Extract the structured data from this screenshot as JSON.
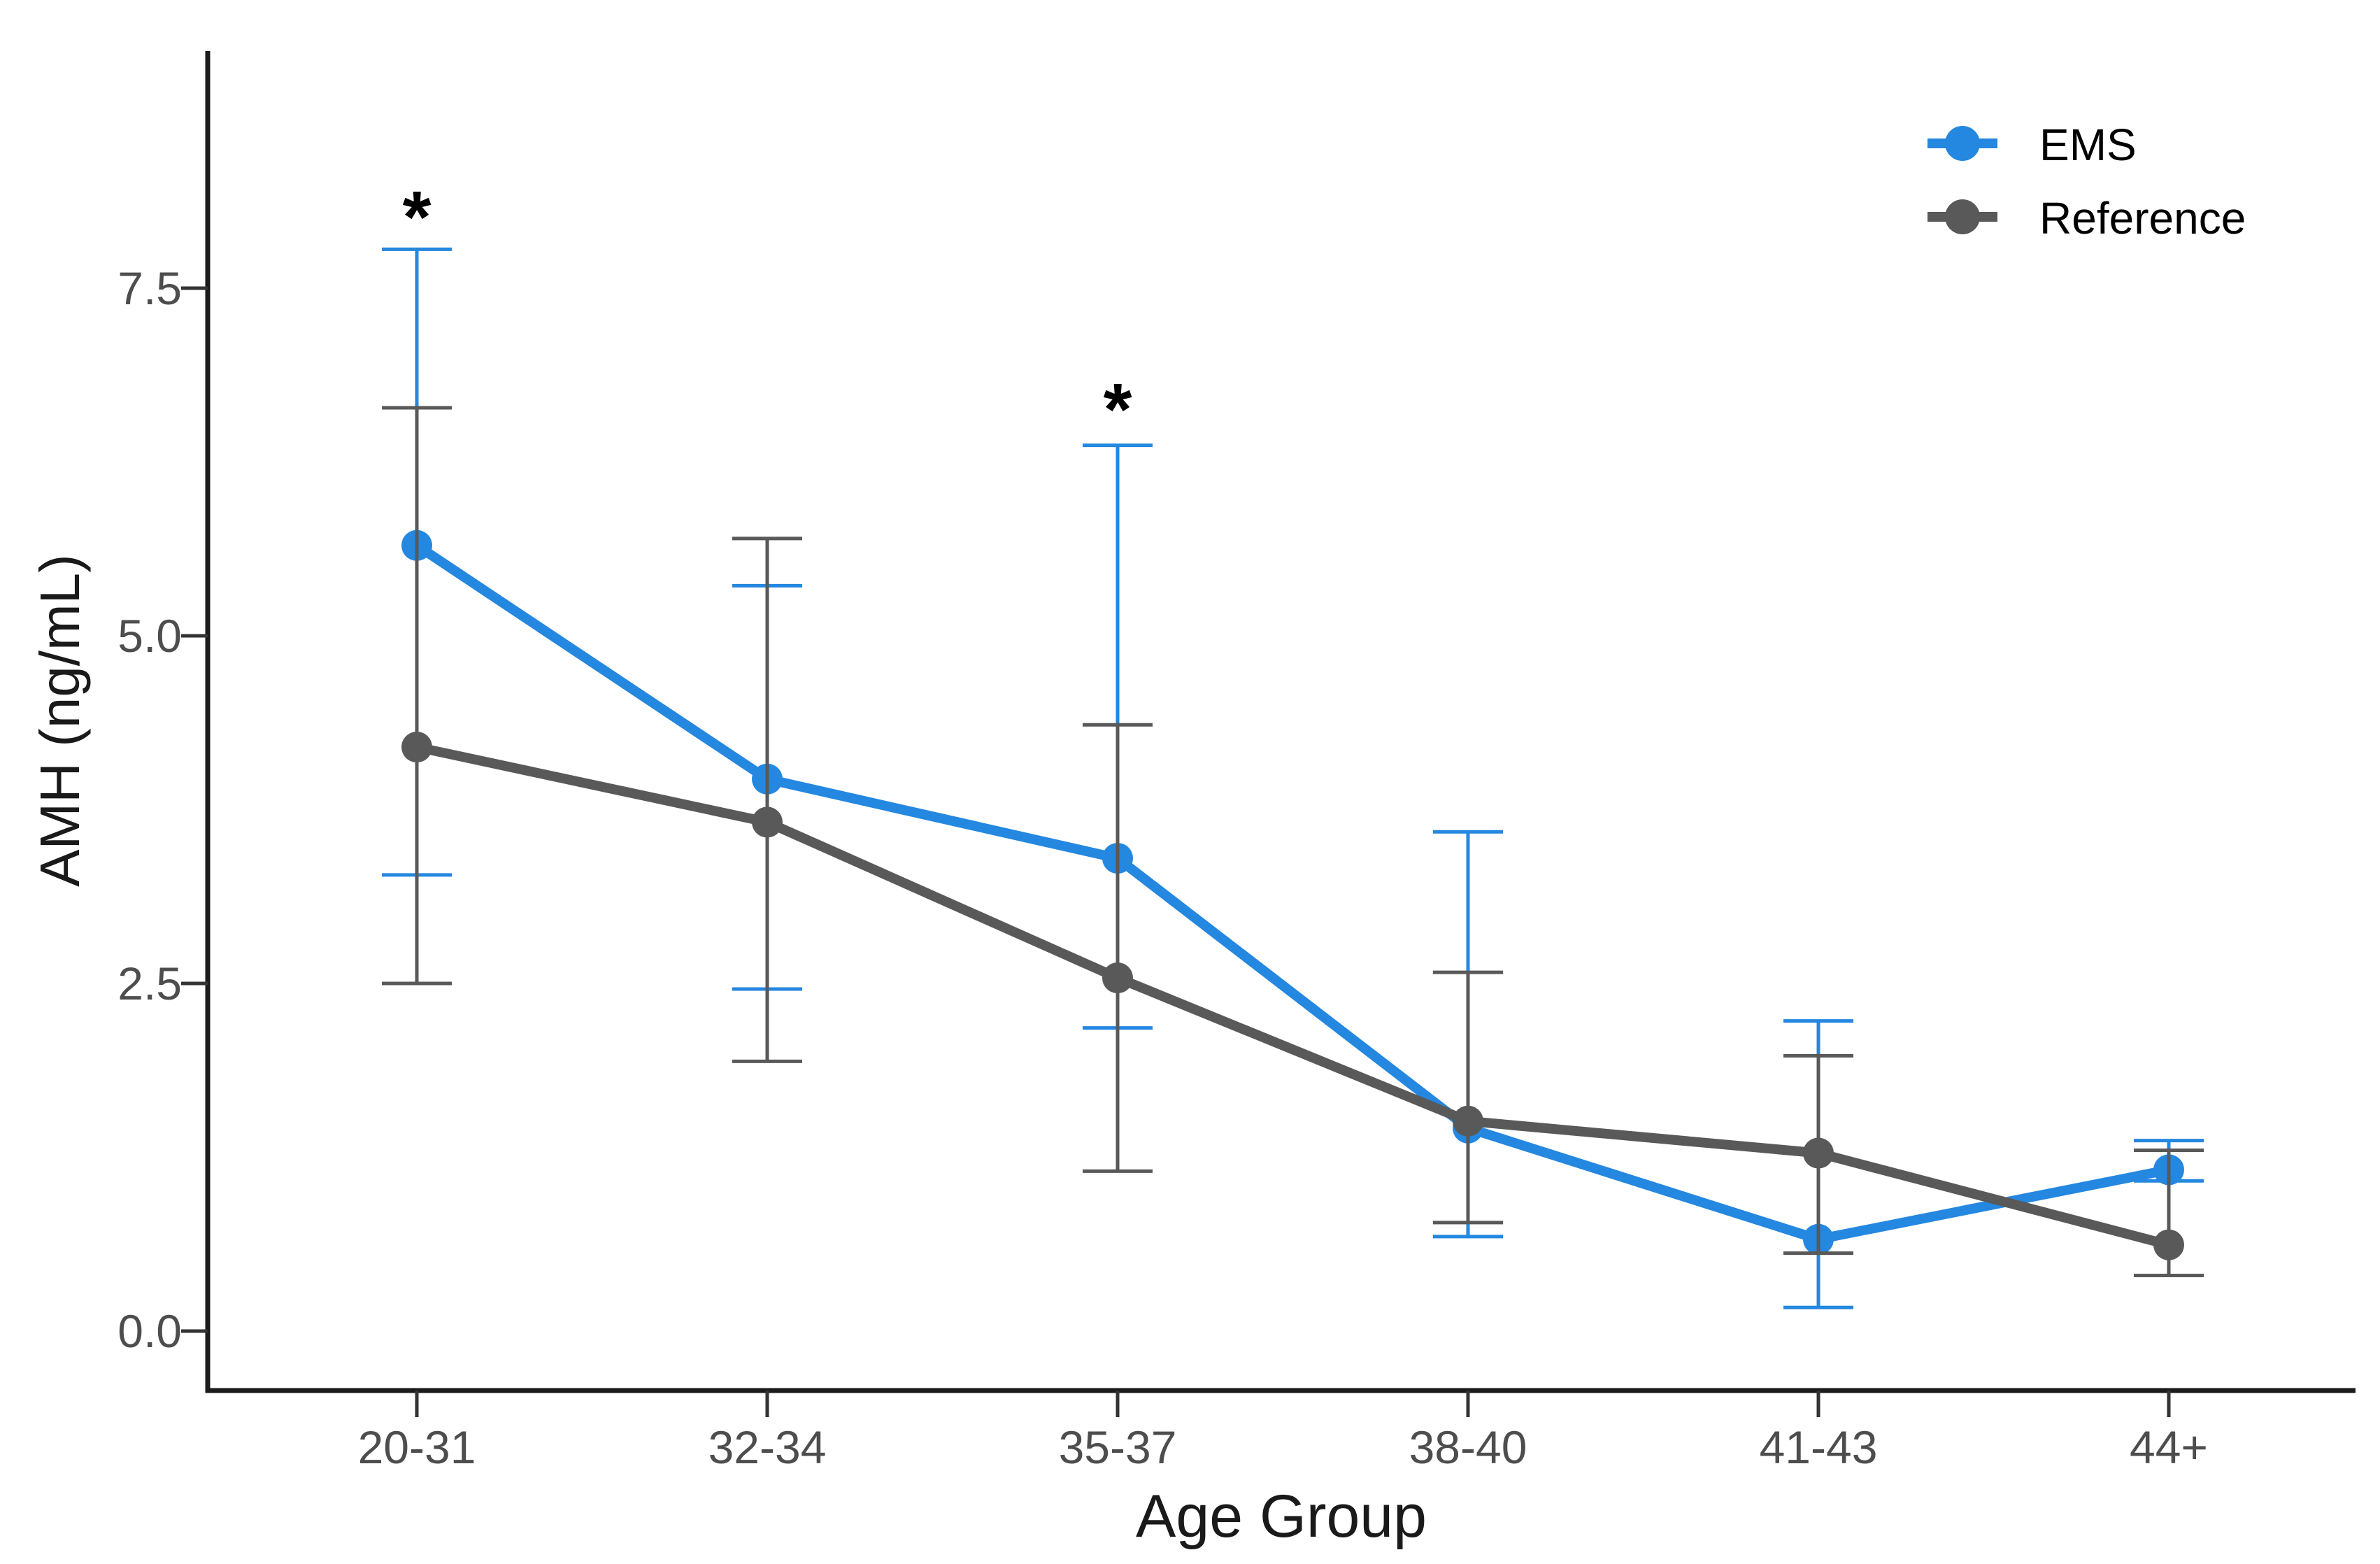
{
  "chart_data": {
    "type": "line",
    "title": "",
    "xlabel": "Age Group",
    "ylabel": "AMH (ng/mL)",
    "categories": [
      "20-31",
      "32-34",
      "35-37",
      "38-40",
      "41-43",
      "44+"
    ],
    "yticks": [
      0.0,
      2.5,
      5.0,
      7.5
    ],
    "ytick_labels": [
      "0.0",
      "2.5",
      "5.0",
      "7.5"
    ],
    "ylim": [
      -0.45,
      9.2
    ],
    "grid": false,
    "legend_position": "top-right",
    "axis_color": "#1a1a1a",
    "tick_color": "#333333",
    "tick_label_color": "#4d4d4d",
    "series": [
      {
        "name": "EMS",
        "color": "#2487E0",
        "values": [
          5.65,
          3.97,
          3.4,
          1.46,
          0.66,
          1.16
        ],
        "error_low": [
          3.28,
          2.46,
          2.18,
          0.68,
          0.17,
          1.08
        ],
        "error_high": [
          7.78,
          5.36,
          6.37,
          3.59,
          2.23,
          1.37
        ]
      },
      {
        "name": "Reference",
        "color": "#595959",
        "values": [
          4.2,
          3.66,
          2.54,
          1.51,
          1.28,
          0.62
        ],
        "error_low": [
          2.5,
          1.94,
          1.15,
          0.78,
          0.56,
          0.4
        ],
        "error_high": [
          6.64,
          5.7,
          4.36,
          2.58,
          1.98,
          1.3
        ]
      }
    ],
    "annotations": [
      {
        "text": "*",
        "category_index": 0,
        "y": 8.05
      },
      {
        "text": "*",
        "category_index": 2,
        "y": 6.67
      }
    ]
  }
}
